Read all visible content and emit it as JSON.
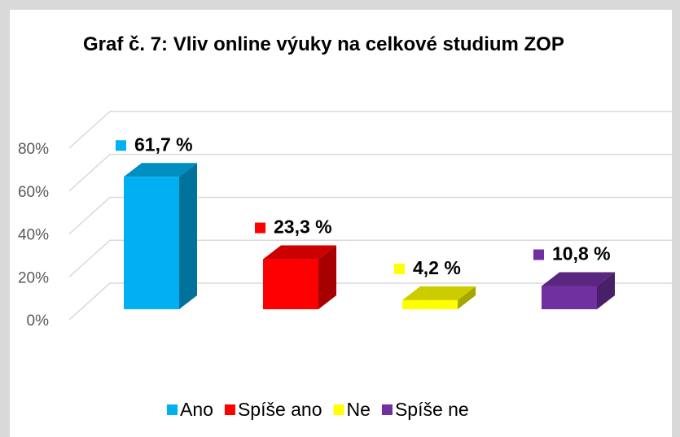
{
  "chart_data": {
    "type": "bar3d",
    "title": "Graf č. 7: Vliv online výuky na celkové studium ZOP",
    "categories": [
      "Ano",
      "Spíše ano",
      "Ne",
      "Spíše ne"
    ],
    "values": [
      61.7,
      23.3,
      4.2,
      10.8
    ],
    "value_labels": [
      "61,7 %",
      "23,3 %",
      "4,2 %",
      "10,8 %"
    ],
    "colors": [
      "#00b0f0",
      "#ff0000",
      "#ffff00",
      "#7030a0"
    ],
    "ylim": [
      0,
      80
    ],
    "yticks": [
      {
        "value": 0,
        "label": "0%"
      },
      {
        "value": 20,
        "label": "20%"
      },
      {
        "value": 40,
        "label": "40%"
      },
      {
        "value": 60,
        "label": "60%"
      },
      {
        "value": 80,
        "label": "80%"
      }
    ],
    "grid": true,
    "legend": "bottom"
  }
}
